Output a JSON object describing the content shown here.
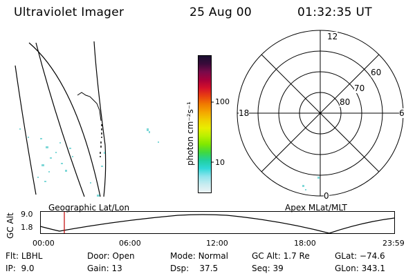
{
  "header": {
    "instrument": "Ultraviolet Imager",
    "date": "25 Aug 00",
    "time": "01:32:35 UT"
  },
  "colorbar": {
    "title": "photon cm⁻²s⁻¹",
    "ticks": [
      "100",
      "10"
    ],
    "colors": [
      "#1a1030",
      "#3a0a3a",
      "#7a0a4a",
      "#a8003a",
      "#d4102a",
      "#e84010",
      "#f07a00",
      "#f4a600",
      "#f0d000",
      "#e8ee00",
      "#b8f000",
      "#80e800",
      "#40d840",
      "#20d0a0",
      "#30d8d8",
      "#90e4ec",
      "#c8ecf0",
      "#eef4f6"
    ]
  },
  "polar_plot": {
    "clock_labels": {
      "top": "12",
      "left": "18",
      "right": "6",
      "bottom": "0"
    },
    "lat_labels": [
      "60",
      "70",
      "80"
    ]
  },
  "mid_labels": {
    "geographic": "Geographic Lat/Lon",
    "apex": "Apex MLat/MLT"
  },
  "timeline": {
    "ylabel": "GC Alt",
    "y_ticks": [
      "9.0",
      "1.8"
    ],
    "x_ticks": [
      "00:00",
      "06:00",
      "12:00",
      "18:00",
      "23:59"
    ],
    "marker_color": "#c00000"
  },
  "status": {
    "flt_label": "Flt:",
    "flt_value": "LBHL",
    "door_label": "Door:",
    "door_value": "Open",
    "mode_label": "Mode:",
    "mode_value": "Normal",
    "gcalt_label": "GC Alt:",
    "gcalt_value": "1.7 Re",
    "glat_label": "GLat:",
    "glat_value": "−74.6",
    "ip_label": "IP:",
    "ip_value": "9.0",
    "gain_label": "Gain:",
    "gain_value": "13",
    "dsp_label": "Dsp:",
    "dsp_value": "37.5",
    "seq_label": "Seq:",
    "seq_value": "39",
    "glon_label": "GLon:",
    "glon_value": "343.1"
  }
}
